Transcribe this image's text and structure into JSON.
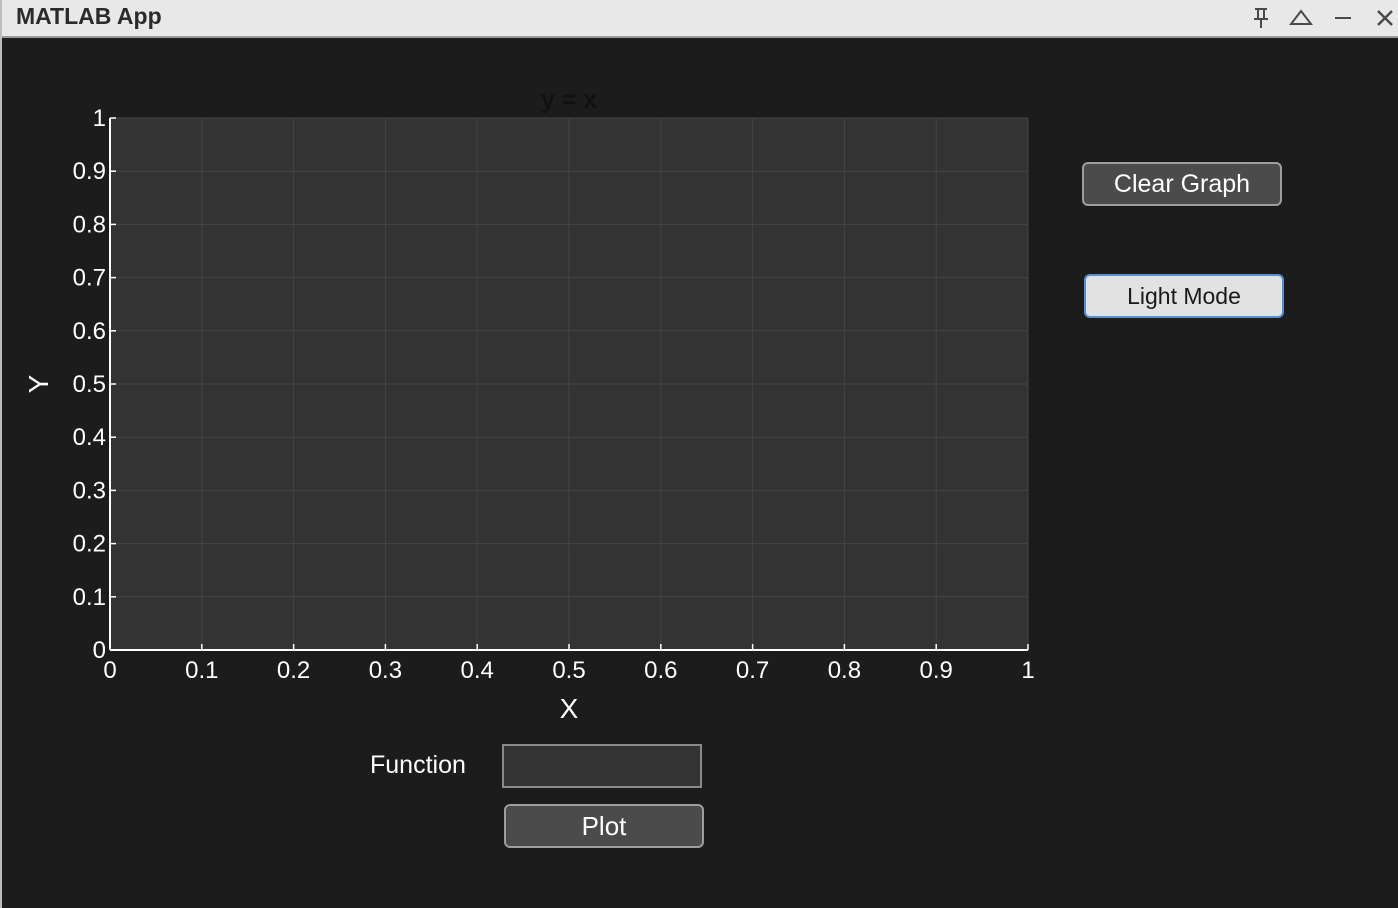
{
  "window": {
    "title": "MATLAB App",
    "controls": [
      "pin-icon",
      "maximize-icon",
      "minimize-icon",
      "close-icon"
    ]
  },
  "buttons": {
    "clear_graph": "Clear Graph",
    "light_mode": "Light Mode",
    "plot": "Plot"
  },
  "function_input": {
    "label": "Function",
    "value": "",
    "placeholder": ""
  },
  "colors": {
    "background": "#1c1c1c",
    "axes_background": "#333333",
    "grid": "#444444",
    "axis_text": "#ffffff",
    "title_text": "#111111"
  },
  "chart_data": {
    "type": "line",
    "title": "y = x",
    "xlabel": "X",
    "ylabel": "Y",
    "xlim": [
      0,
      1
    ],
    "ylim": [
      0,
      1
    ],
    "xticks": [
      "0",
      "0.1",
      "0.2",
      "0.3",
      "0.4",
      "0.5",
      "0.6",
      "0.7",
      "0.8",
      "0.9",
      "1"
    ],
    "yticks": [
      "0",
      "0.1",
      "0.2",
      "0.3",
      "0.4",
      "0.5",
      "0.6",
      "0.7",
      "0.8",
      "0.9",
      "1"
    ],
    "grid": true,
    "series": []
  }
}
